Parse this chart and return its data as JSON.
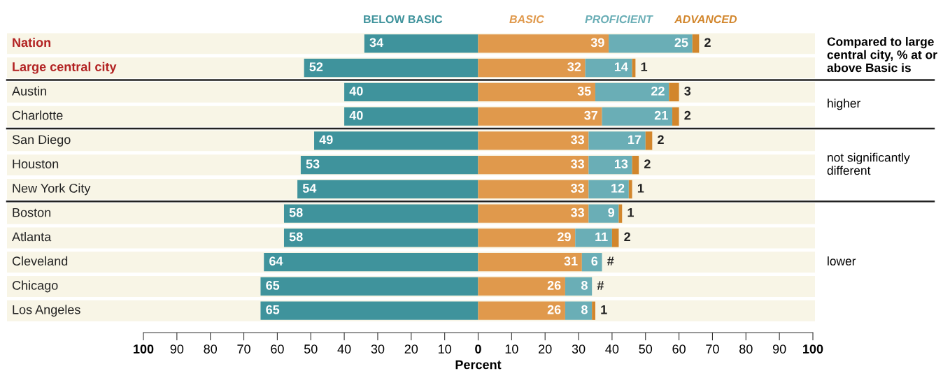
{
  "chart_data": {
    "type": "bar",
    "orientation": "horizontal",
    "categories": [
      "Nation",
      "Large central city",
      "Austin",
      "Charlotte",
      "San Diego",
      "Houston",
      "New York City",
      "Boston",
      "Atlanta",
      "Cleveland",
      "Chicago",
      "Los Angeles"
    ],
    "series": [
      {
        "name": "BELOW BASIC",
        "color": "#3f939c",
        "values": [
          34,
          52,
          40,
          40,
          49,
          53,
          54,
          58,
          58,
          64,
          65,
          65
        ],
        "base": [
          -34,
          -52,
          -40,
          -40,
          -49,
          -53,
          -54,
          -58,
          -58,
          -64,
          -65,
          -65
        ],
        "value_labels": [
          "34",
          "52",
          "40",
          "40",
          "49",
          "53",
          "54",
          "58",
          "58",
          "64",
          "65",
          "65"
        ]
      },
      {
        "name": "BASIC",
        "color": "#e0994c",
        "values": [
          39,
          32,
          35,
          37,
          33,
          33,
          33,
          33,
          29,
          31,
          26,
          26
        ],
        "base": [
          0,
          0,
          0,
          0,
          0,
          0,
          0,
          0,
          0,
          0,
          0,
          0
        ],
        "value_labels": [
          "39",
          "32",
          "35",
          "37",
          "33",
          "33",
          "33",
          "33",
          "29",
          "31",
          "26",
          "26"
        ]
      },
      {
        "name": "PROFICIENT",
        "color": "#6aaeb6",
        "values": [
          25,
          14,
          22,
          21,
          17,
          13,
          12,
          9,
          11,
          6,
          8,
          8
        ],
        "base": [
          39,
          32,
          35,
          37,
          33,
          33,
          33,
          33,
          29,
          31,
          26,
          26
        ],
        "value_labels": [
          "25",
          "14",
          "22",
          "21",
          "17",
          "13",
          "12",
          "9",
          "11",
          "6",
          "8",
          "8"
        ]
      },
      {
        "name": "ADVANCED",
        "color": "#d2862c",
        "values": [
          2,
          1,
          3,
          2,
          2,
          2,
          1,
          1,
          2,
          null,
          null,
          1
        ],
        "base": [
          64,
          46,
          57,
          58,
          50,
          46,
          45,
          42,
          40,
          null,
          null,
          34
        ],
        "value_labels": [
          "2",
          "1",
          "3",
          "2",
          "2",
          "2",
          "1",
          "1",
          "2",
          "#",
          "#",
          "1"
        ]
      }
    ],
    "xlim": [
      -100,
      100
    ],
    "xticks": [
      {
        "value": -100,
        "label": "100"
      },
      {
        "value": -90,
        "label": "90"
      },
      {
        "value": -80,
        "label": "80"
      },
      {
        "value": -70,
        "label": "70"
      },
      {
        "value": -60,
        "label": "60"
      },
      {
        "value": -50,
        "label": "50"
      },
      {
        "value": -40,
        "label": "40"
      },
      {
        "value": -30,
        "label": "30"
      },
      {
        "value": -20,
        "label": "20"
      },
      {
        "value": -10,
        "label": "10"
      },
      0,
      10,
      20,
      30,
      40,
      50,
      60,
      70,
      80,
      90,
      100
    ],
    "xlabel": "Percent",
    "grid": false,
    "annotations": [
      "Compared to large central city, % at or above Basic is",
      "higher",
      "not significantly different",
      "lower"
    ]
  }
}
